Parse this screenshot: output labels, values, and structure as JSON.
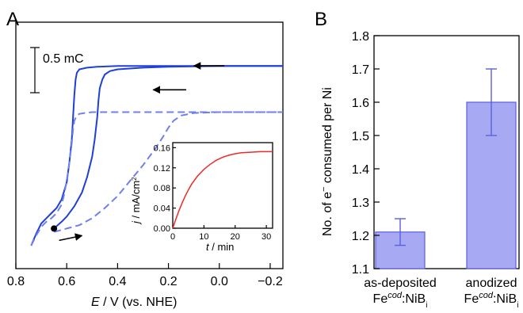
{
  "colors": {
    "solid": "#1f3fd8",
    "dashed": "#6f7ff2",
    "inset_curve": "#ee2a2a",
    "bar_fill": "#a7a9f2",
    "bar_edge": "#5a5fe0"
  },
  "chart_data": [
    {
      "panel": "A",
      "type": "line",
      "xlabel_var": "E",
      "xlabel_unit": " / V (vs. NHE)",
      "xlim": [
        0.8,
        -0.25
      ],
      "x_ticks": [
        "0.8",
        "0.6",
        "0.4",
        "0.2",
        "0.0",
        "−0.2"
      ],
      "x_tick_values": [
        0.8,
        0.6,
        0.4,
        0.2,
        0.0,
        -0.2
      ],
      "scale_bar_label": "0.5 mC",
      "scale_bar_mC": 0.5,
      "series": [
        {
          "style": "solid",
          "x": [
            0.74,
            0.72,
            0.7,
            0.68,
            0.66,
            0.64,
            0.62,
            0.6,
            0.59,
            0.58,
            0.575,
            0.57,
            0.565,
            0.56,
            0.55,
            0.52,
            0.48,
            0.4,
            0.2,
            0.0,
            -0.25
          ],
          "y": [
            0.0,
            0.07,
            0.13,
            0.16,
            0.19,
            0.22,
            0.27,
            0.37,
            0.48,
            0.62,
            0.75,
            0.88,
            0.97,
            1.01,
            1.03,
            1.04,
            1.045,
            1.05,
            1.05,
            1.05,
            1.05
          ]
        },
        {
          "style": "solid",
          "x": [
            0.65,
            0.62,
            0.6,
            0.57,
            0.54,
            0.52,
            0.5,
            0.49,
            0.48,
            0.475,
            0.47,
            0.46,
            0.45,
            0.43,
            0.4,
            0.3,
            0.2,
            0.0,
            -0.25
          ],
          "y": [
            0.1,
            0.14,
            0.17,
            0.23,
            0.31,
            0.4,
            0.52,
            0.62,
            0.75,
            0.85,
            0.92,
            0.97,
            1.0,
            1.02,
            1.03,
            1.04,
            1.045,
            1.05,
            1.05
          ]
        },
        {
          "style": "dashed",
          "x": [
            0.74,
            0.72,
            0.7,
            0.68,
            0.66,
            0.64,
            0.62,
            0.61,
            0.6,
            0.59,
            0.58,
            0.575,
            0.57,
            0.56,
            0.55,
            0.53,
            0.5,
            0.4,
            0.2,
            0.0,
            -0.25
          ],
          "y": [
            0.0,
            0.06,
            0.11,
            0.14,
            0.16,
            0.19,
            0.24,
            0.3,
            0.38,
            0.48,
            0.6,
            0.68,
            0.73,
            0.76,
            0.77,
            0.775,
            0.78,
            0.78,
            0.78,
            0.78,
            0.78
          ]
        },
        {
          "style": "dashed",
          "x": [
            0.65,
            0.6,
            0.55,
            0.5,
            0.45,
            0.4,
            0.35,
            0.3,
            0.25,
            0.22,
            0.2,
            0.18,
            0.15,
            0.1,
            0.0,
            -0.25
          ],
          "y": [
            0.08,
            0.1,
            0.12,
            0.16,
            0.22,
            0.29,
            0.38,
            0.47,
            0.57,
            0.64,
            0.69,
            0.73,
            0.76,
            0.775,
            0.78,
            0.78
          ]
        }
      ],
      "marker_point": {
        "x": 0.65,
        "y": 0.1
      },
      "arrows": [
        {
          "x_start": -0.02,
          "x_end": 0.1,
          "y": 1.06,
          "direction": "left"
        },
        {
          "x_start": 0.13,
          "x_end": 0.26,
          "y": 0.92,
          "direction": "left"
        },
        {
          "x_start": 0.63,
          "x_end": 0.54,
          "y": 0.04,
          "direction": "right"
        }
      ],
      "inset": {
        "type": "line",
        "xlabel_var": "t",
        "xlabel_unit": " / min",
        "ylabel_var": "j",
        "ylabel_unit": " / mA/cm",
        "ylabel_sup": "2",
        "xlim": [
          0,
          32
        ],
        "ylim": [
          0,
          0.17
        ],
        "x_ticks": [
          "0",
          "10",
          "20",
          "30"
        ],
        "x_tick_values": [
          0,
          10,
          20,
          30
        ],
        "y_ticks": [
          "0.00",
          "0.04",
          "0.08",
          "0.12",
          "0.16"
        ],
        "y_tick_values": [
          0,
          0.04,
          0.08,
          0.12,
          0.16
        ],
        "x": [
          0,
          1,
          2,
          3,
          4,
          5,
          6,
          8,
          10,
          12,
          14,
          16,
          18,
          20,
          22,
          25,
          28,
          32
        ],
        "y": [
          0.0,
          0.018,
          0.035,
          0.05,
          0.064,
          0.076,
          0.087,
          0.104,
          0.117,
          0.127,
          0.135,
          0.141,
          0.145,
          0.148,
          0.15,
          0.151,
          0.152,
          0.152
        ]
      }
    },
    {
      "panel": "B",
      "type": "bar",
      "ylabel_pre": "No. of e",
      "ylabel_sup": "−",
      "ylabel_post": " consumed per Ni",
      "ylim": [
        1.1,
        1.8
      ],
      "y_ticks": [
        "1.1",
        "1.2",
        "1.3",
        "1.4",
        "1.5",
        "1.6",
        "1.7",
        "1.8"
      ],
      "y_tick_values": [
        1.1,
        1.2,
        1.3,
        1.4,
        1.5,
        1.6,
        1.7,
        1.8
      ],
      "categories": [
        {
          "line1": "as-deposited",
          "line2_pre": "Fe",
          "line2_sup": "cod",
          "line2_mid": ":NiB",
          "line2_sub": "i"
        },
        {
          "line1": "anodized",
          "line2_pre": "Fe",
          "line2_sup": "cod",
          "line2_mid": ":NiB",
          "line2_sub": "i"
        }
      ],
      "values": [
        1.21,
        1.6
      ],
      "errors": [
        0.04,
        0.1
      ]
    }
  ]
}
